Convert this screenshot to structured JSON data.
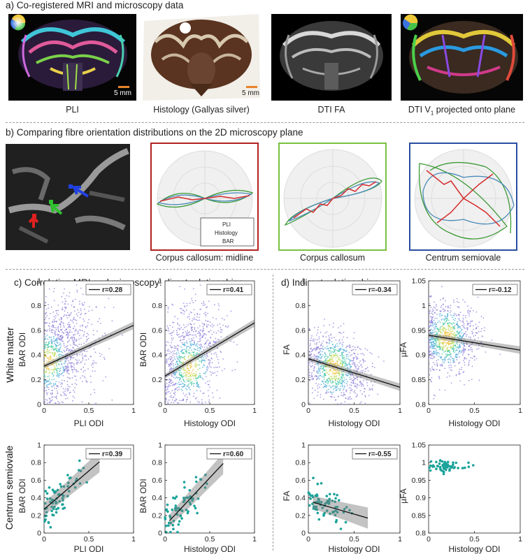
{
  "section_a": {
    "title": "a) Co-registered MRI and microscopy data",
    "panels": [
      {
        "caption": "PLI",
        "scale": "5 mm"
      },
      {
        "caption": "Histology (Gallyas silver)",
        "scale": "5 mm"
      },
      {
        "caption": "DTI FA"
      },
      {
        "caption_main": "DTI V",
        "caption_sub": "1",
        "caption_rest": " projected onto plane"
      }
    ]
  },
  "section_b": {
    "title": "b) Comparing fibre orientation distributions on the 2D microscopy plane",
    "polar_captions": [
      "Corpus callosum: midline",
      "Corpus callosum",
      "Centrum semiovale"
    ],
    "legend": [
      "PLI",
      "Histology",
      "BAR"
    ],
    "colors": {
      "pli": "#4a8ab8",
      "histology": "#d52b2b",
      "bar": "#3c9a36",
      "box1": "#b22222",
      "box2": "#7ac142",
      "box3": "#2a4fa0"
    }
  },
  "section_c": {
    "title": "c) Correlating MRI and microscopy: direct relationships"
  },
  "section_d": {
    "title": "d) Indirect relationships"
  },
  "row_labels": {
    "top": "White matter",
    "bottom": "Centrum semiovale"
  },
  "chart_data": [
    {
      "type": "scatter",
      "id": "c_wm_pli",
      "xlabel": "PLI ODI",
      "ylabel": "BAR ODI",
      "xlim": [
        0,
        1
      ],
      "ylim": [
        0,
        1
      ],
      "xticks": [
        "0",
        "0.5",
        "1"
      ],
      "yticks": [
        "0",
        "0.2",
        "0.4",
        "0.6",
        "0.8",
        "1"
      ],
      "annotation": "r=0.28",
      "fit": {
        "x": [
          0,
          1
        ],
        "y": [
          0.31,
          0.64
        ]
      },
      "style": "density"
    },
    {
      "type": "scatter",
      "id": "c_wm_hist",
      "xlabel": "Histology ODI",
      "ylabel": "BAR ODI",
      "xlim": [
        0,
        1
      ],
      "ylim": [
        0,
        1
      ],
      "xticks": [
        "0",
        "0.5",
        "1"
      ],
      "yticks": [
        "0",
        "0.2",
        "0.4",
        "0.6",
        "0.8",
        "1"
      ],
      "annotation": "r=0.41",
      "fit": {
        "x": [
          0,
          1
        ],
        "y": [
          0.23,
          0.66
        ]
      },
      "style": "density"
    },
    {
      "type": "scatter",
      "id": "d_wm_fa",
      "xlabel": "Histology ODI",
      "ylabel": "FA",
      "xlim": [
        0,
        1
      ],
      "ylim": [
        0,
        1
      ],
      "xticks": [
        "0",
        "0.5",
        "1"
      ],
      "yticks": [
        "0",
        "0.2",
        "0.4",
        "0.6",
        "0.8",
        "1"
      ],
      "annotation": "r=-0.34",
      "fit": {
        "x": [
          0,
          1
        ],
        "y": [
          0.37,
          0.14
        ]
      },
      "style": "density"
    },
    {
      "type": "scatter",
      "id": "d_wm_mufa",
      "xlabel": "Histology ODI",
      "ylabel": "µFA",
      "xlim": [
        0,
        1
      ],
      "ylim": [
        0.8,
        1.05
      ],
      "xticks": [
        "0",
        "0.5",
        "1"
      ],
      "yticks": [
        "0.8",
        "0.85",
        "0.9",
        "0.95",
        "1",
        "1.05"
      ],
      "annotation": "r=-0.12",
      "fit": {
        "x": [
          0,
          1
        ],
        "y": [
          0.94,
          0.91
        ]
      },
      "style": "density"
    },
    {
      "type": "scatter",
      "id": "c_cs_pli",
      "xlabel": "PLI ODI",
      "ylabel": "BAR ODI",
      "xlim": [
        0,
        1
      ],
      "ylim": [
        0,
        1
      ],
      "xticks": [
        "0",
        "0.5",
        "1"
      ],
      "yticks": [
        "0",
        "0.2",
        "0.4",
        "0.6",
        "0.8",
        "1"
      ],
      "annotation": "r=0.39",
      "fit": {
        "x": [
          0,
          0.62
        ],
        "y": [
          0.27,
          0.81
        ]
      },
      "style": "teal"
    },
    {
      "type": "scatter",
      "id": "c_cs_hist",
      "xlabel": "Histology ODI",
      "ylabel": "BAR ODI",
      "xlim": [
        0,
        1
      ],
      "ylim": [
        0,
        1
      ],
      "xticks": [
        "0",
        "0.5",
        "1"
      ],
      "yticks": [
        "0",
        "0.2",
        "0.4",
        "0.6",
        "0.8",
        "1"
      ],
      "annotation": "r=0.60",
      "fit": {
        "x": [
          0.05,
          0.65
        ],
        "y": [
          0.14,
          0.79
        ]
      },
      "style": "teal"
    },
    {
      "type": "scatter",
      "id": "d_cs_fa",
      "xlabel": "Histology ODI",
      "ylabel": "FA",
      "xlim": [
        0,
        1
      ],
      "ylim": [
        0,
        1
      ],
      "xticks": [
        "0",
        "0.5",
        "1"
      ],
      "yticks": [
        "0",
        "0.2",
        "0.4",
        "0.6",
        "0.8",
        "1"
      ],
      "annotation": "r=-0.55",
      "fit": {
        "x": [
          0.05,
          0.65
        ],
        "y": [
          0.35,
          0.17
        ]
      },
      "style": "teal"
    },
    {
      "type": "scatter",
      "id": "d_cs_mufa",
      "xlabel": "Histology ODI",
      "ylabel": "µFA",
      "xlim": [
        0,
        1
      ],
      "ylim": [
        0.8,
        1.05
      ],
      "xticks": [
        "0",
        "0.5",
        "1"
      ],
      "yticks": [
        "0.8",
        "0.85",
        "0.9",
        "0.95",
        "1",
        "1.05"
      ],
      "annotation": "",
      "fit": null,
      "style": "teal-cluster"
    }
  ]
}
